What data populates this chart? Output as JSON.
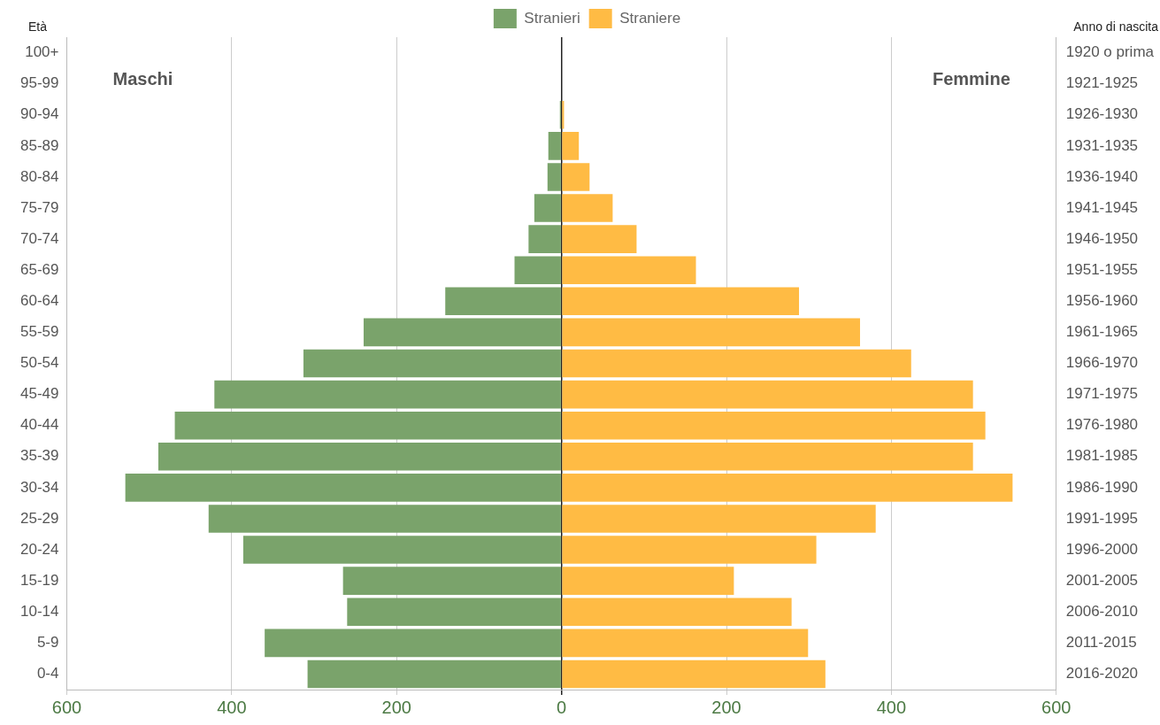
{
  "chart_data": {
    "type": "bar",
    "orientation": "horizontal",
    "stacked": true,
    "ylabel": "Età",
    "y2label": "Anno di nascita",
    "categories": [
      "100+",
      "95-99",
      "90-94",
      "85-89",
      "80-84",
      "75-79",
      "70-74",
      "65-69",
      "60-64",
      "55-59",
      "50-54",
      "45-49",
      "40-44",
      "35-39",
      "30-34",
      "25-29",
      "20-24",
      "15-19",
      "10-14",
      "5-9",
      "0-4"
    ],
    "y2_categories": [
      "1920 o prima",
      "1921-1925",
      "1926-1930",
      "1931-1935",
      "1936-1940",
      "1941-1945",
      "1946-1950",
      "1951-1955",
      "1956-1960",
      "1961-1965",
      "1966-1970",
      "1971-1975",
      "1976-1980",
      "1981-1985",
      "1986-1990",
      "1991-1995",
      "1996-2000",
      "2001-2005",
      "2006-2010",
      "2011-2015",
      "2016-2020"
    ],
    "series": [
      {
        "name": "Stranieri",
        "color": "#7aa36b",
        "values": [
          0,
          0,
          -2,
          -16,
          -17,
          -33,
          -40,
          -57,
          -141,
          -240,
          -313,
          -421,
          -469,
          -489,
          -529,
          -428,
          -386,
          -265,
          -260,
          -360,
          -308
        ]
      },
      {
        "name": "Straniere",
        "color": "#ffbb44",
        "values": [
          0,
          0,
          3,
          21,
          34,
          62,
          91,
          163,
          288,
          362,
          424,
          499,
          514,
          499,
          547,
          381,
          309,
          209,
          279,
          299,
          320
        ]
      }
    ],
    "xlim": [
      -600,
      600
    ],
    "xticks": [
      {
        "value": -600,
        "label": "600"
      },
      {
        "value": -400,
        "label": "400"
      },
      {
        "value": -200,
        "label": "200"
      },
      0,
      200,
      400,
      600
    ],
    "annotations": [
      "Maschi",
      "Femmine"
    ],
    "grid": "x",
    "legend": "top"
  }
}
